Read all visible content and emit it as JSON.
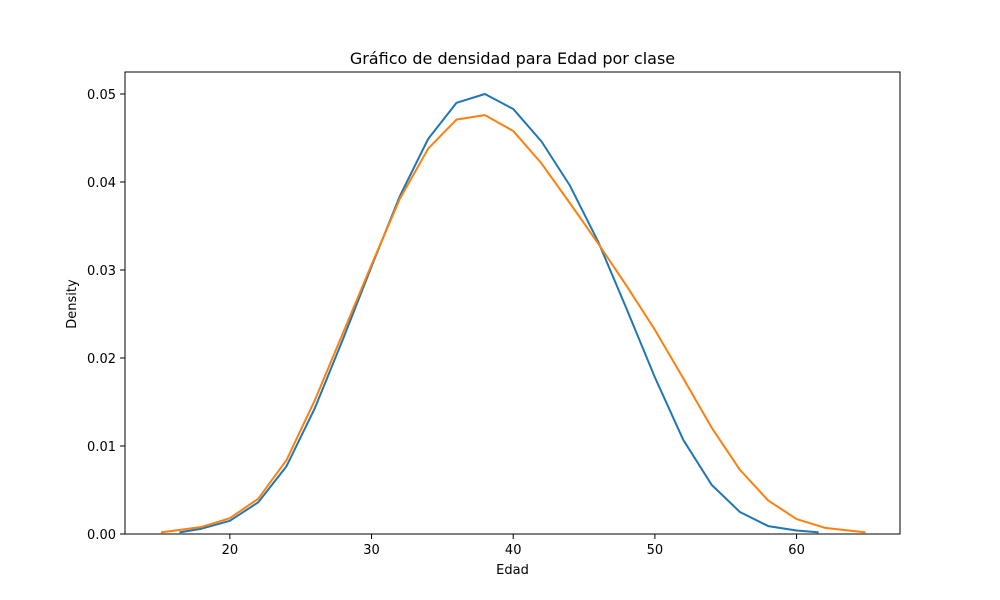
{
  "chart_data": {
    "type": "line",
    "title": "Gráfico de densidad para Edad por clase",
    "xlabel": "Edad",
    "ylabel": "Density",
    "xlim": [
      12.6,
      67.3
    ],
    "ylim": [
      0,
      0.0525
    ],
    "xticks": [
      20,
      30,
      40,
      50,
      60
    ],
    "yticks": [
      0.0,
      0.01,
      0.02,
      0.03,
      0.04,
      0.05
    ],
    "ytick_labels": [
      "0.00",
      "0.01",
      "0.02",
      "0.03",
      "0.04",
      "0.05"
    ],
    "grid": false,
    "legend": "none",
    "series": [
      {
        "color": "#1f77b4",
        "x": [
          16.5,
          18,
          20,
          22,
          24,
          26,
          28,
          30,
          32,
          34,
          36,
          38,
          40,
          42,
          44,
          46,
          48,
          50,
          52,
          54,
          56,
          58,
          60,
          61.5
        ],
        "y": [
          0.0002,
          0.0006,
          0.0015,
          0.0036,
          0.0077,
          0.0143,
          0.0222,
          0.0304,
          0.0384,
          0.0449,
          0.049,
          0.05,
          0.0483,
          0.0446,
          0.0396,
          0.0332,
          0.0256,
          0.0178,
          0.0107,
          0.0056,
          0.0025,
          0.0009,
          0.0004,
          0.0002
        ]
      },
      {
        "color": "#ff7f0e",
        "x": [
          15.2,
          18,
          20,
          22,
          24,
          26,
          28,
          30,
          32,
          34,
          36,
          38,
          40,
          42,
          44,
          46,
          48,
          50,
          52,
          54,
          56,
          58,
          60,
          62,
          64.8
        ],
        "y": [
          0.0002,
          0.0008,
          0.0018,
          0.004,
          0.0084,
          0.0152,
          0.0229,
          0.0306,
          0.0381,
          0.0438,
          0.0471,
          0.0476,
          0.0458,
          0.0421,
          0.0376,
          0.033,
          0.0282,
          0.0232,
          0.0177,
          0.0121,
          0.0073,
          0.0038,
          0.0017,
          0.0007,
          0.0002
        ]
      }
    ]
  }
}
